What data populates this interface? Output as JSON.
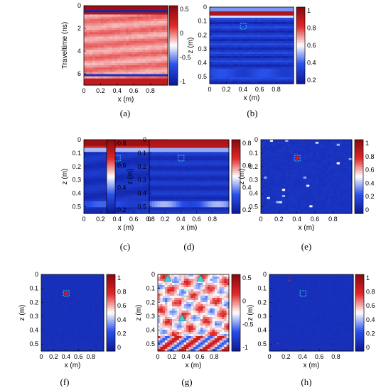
{
  "chart_data": [
    {
      "type": "heatmap",
      "caption": "(a)",
      "xlabel": "x (m)",
      "ylabel": "Traveltime (ns)",
      "xlim": [
        0,
        1.0
      ],
      "ylim": [
        0,
        7.5
      ],
      "yticks": [
        "0",
        "2",
        "4",
        "6"
      ],
      "xticks": [
        "0",
        "0.2",
        "0.4",
        "0.6",
        "0.8"
      ],
      "colorbar": {
        "range": [
          -1,
          0.75
        ],
        "ticks": [
          "0.5",
          "0",
          "-0.5",
          "-1"
        ]
      },
      "pattern": "gpr-data",
      "marker": null
    },
    {
      "type": "heatmap",
      "caption": "(b)",
      "xlabel": "x (m)",
      "ylabel": "z (m)",
      "xlim": [
        0,
        1.0
      ],
      "ylim": [
        0,
        0.6
      ],
      "yticks": [
        "0",
        "0.1",
        "0.2",
        "0.3",
        "0.4",
        "0.5"
      ],
      "xticks": [
        "0",
        "0.2",
        "0.4",
        "0.6",
        "0.8"
      ],
      "colorbar": {
        "range": [
          0,
          1
        ],
        "ticks": [
          "1",
          "0.8",
          "0.6",
          "0.4",
          "0.2"
        ]
      },
      "pattern": "migration-banded",
      "marker": {
        "type": "dashed-square",
        "x": 0.4,
        "z": 0.15
      }
    },
    {
      "type": "heatmap",
      "caption": "(c)",
      "xlabel": "x (m)",
      "ylabel": "z (m)",
      "xlim": [
        0,
        1.0
      ],
      "ylim": [
        0,
        0.6
      ],
      "yticks": [
        "0",
        "0.1",
        "0.2",
        "0.3",
        "0.4",
        "0.5"
      ],
      "xticks": [
        "0",
        "0.2",
        "0.4",
        "0.6",
        "0.8"
      ],
      "colorbar": {
        "range": [
          0,
          0.9
        ],
        "ticks": [
          "0.8",
          "0.6",
          "0.4",
          "0.2"
        ]
      },
      "pattern": "migration-smooth",
      "marker": {
        "type": "dashed-square",
        "x": 0.4,
        "z": 0.15
      }
    },
    {
      "type": "heatmap",
      "caption": "(d)",
      "xlabel": "x (m)",
      "ylabel": "z (m)",
      "xlim": [
        0,
        1.0
      ],
      "ylim": [
        0,
        0.6
      ],
      "yticks": [
        "0",
        "0.1",
        "0.2",
        "0.3",
        "0.4",
        "0.5"
      ],
      "xticks": [
        "0",
        "0.2",
        "0.4",
        "0.6",
        "0.8"
      ],
      "colorbar": {
        "range": [
          0,
          0.9
        ],
        "ticks": [
          "0.8",
          "0.6",
          "0.4",
          "0.2"
        ]
      },
      "pattern": "migration-bright-base",
      "marker": {
        "type": "dashed-square",
        "x": 0.4,
        "z": 0.15
      }
    },
    {
      "type": "heatmap",
      "caption": "(e)",
      "xlabel": "x (m)",
      "ylabel": "z (m)",
      "xlim": [
        0,
        1.0
      ],
      "ylim": [
        0,
        0.6
      ],
      "yticks": [
        "0",
        "0.1",
        "0.2",
        "0.3",
        "0.4",
        "0.5"
      ],
      "xticks": [
        "0",
        "0.2",
        "0.4",
        "0.6",
        "0.8"
      ],
      "colorbar": {
        "range": [
          0,
          1
        ],
        "ticks": [
          "1",
          "0.8",
          "0.6",
          "0.4",
          "0.2",
          "0"
        ]
      },
      "pattern": "sparse-speckle",
      "marker": {
        "type": "dashed-square",
        "x": 0.4,
        "z": 0.15,
        "hot": true
      }
    },
    {
      "type": "heatmap",
      "caption": "(f)",
      "xlabel": "x (m)",
      "ylabel": "z (m)",
      "xlim": [
        0,
        1.0
      ],
      "ylim": [
        0,
        0.6
      ],
      "yticks": [
        "0",
        "0.1",
        "0.2",
        "0.3",
        "0.4",
        "0.5"
      ],
      "xticks": [
        "0",
        "0.2",
        "0.4",
        "0.6",
        "0.8"
      ],
      "colorbar": {
        "range": [
          0,
          1
        ],
        "ticks": [
          "1",
          "0.8",
          "0.6",
          "0.4",
          "0.2",
          "0"
        ]
      },
      "pattern": "sparse-clean",
      "marker": {
        "type": "dashed-square",
        "x": 0.4,
        "z": 0.15,
        "hot": true
      }
    },
    {
      "type": "heatmap",
      "caption": "(g)",
      "xlabel": "x (m)",
      "ylabel": "z (m)",
      "xlim": [
        0,
        1.0
      ],
      "ylim": [
        0,
        0.6
      ],
      "yticks": [
        "0",
        "0.1",
        "0.2",
        "0.3",
        "0.4",
        "0.5"
      ],
      "xticks": [
        "0",
        "0.2",
        "0.4",
        "0.6",
        "0.8"
      ],
      "colorbar": {
        "range": [
          -1,
          0.75
        ],
        "ticks": [
          "0.5",
          "0",
          "-0.5",
          "-1"
        ]
      },
      "pattern": "diverging-noise",
      "marker": {
        "type": "dashed-square",
        "x": 0.4,
        "z": 0.15
      },
      "triangles": [
        {
          "x": 0.14,
          "z": 0.01
        },
        {
          "x": 0.6,
          "z": 0.01
        },
        {
          "x": 0.34,
          "z": 0.32
        }
      ]
    },
    {
      "type": "heatmap",
      "caption": "(h)",
      "xlabel": "x (m)",
      "ylabel": "z (m)",
      "xlim": [
        0,
        1.0
      ],
      "ylim": [
        0,
        0.6
      ],
      "yticks": [
        "0",
        "0.1",
        "0.2",
        "0.3",
        "0.4",
        "0.5"
      ],
      "xticks": [
        "0",
        "0.2",
        "0.4",
        "0.6",
        "0.8"
      ],
      "colorbar": {
        "range": [
          0,
          1
        ],
        "ticks": [
          "1",
          "0.8",
          "0.6",
          "0.4",
          "0.2",
          "0"
        ]
      },
      "pattern": "near-empty",
      "marker": {
        "type": "dashed-square",
        "x": 0.4,
        "z": 0.15
      }
    }
  ],
  "colors": {
    "deep_blue": "#0d1b9a",
    "white": "#ffffff",
    "deep_red": "#8a0a10",
    "marker": "#35d6e0"
  }
}
